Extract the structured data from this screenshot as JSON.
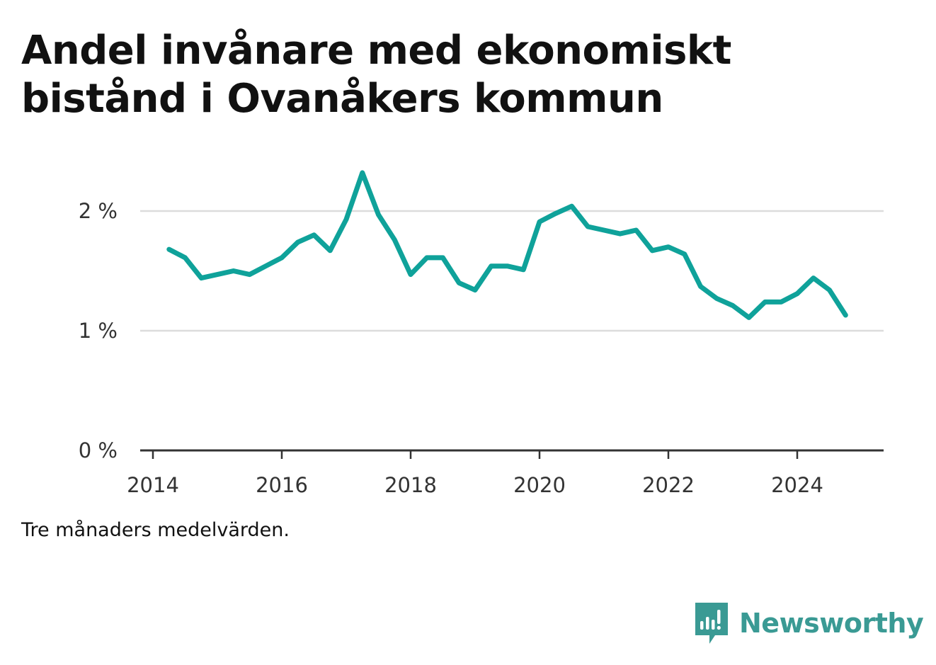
{
  "title": "Andel invånare med ekonomiskt bistånd i Ovanåkers kommun",
  "note": "Tre månaders medelvärden.",
  "brand": {
    "name": "Newsworthy",
    "icon": "newsworthy-logo-icon",
    "color": "#3a9a94"
  },
  "chart_data": {
    "type": "line",
    "title": "Andel invånare med ekonomiskt bistånd i Ovanåkers kommun",
    "xlabel": "",
    "ylabel": "",
    "x_ticks": [
      "2014",
      "2016",
      "2018",
      "2020",
      "2022",
      "2024"
    ],
    "y_ticks": [
      "0 %",
      "1 %",
      "2 %"
    ],
    "ylim": [
      0,
      2.4
    ],
    "grid": true,
    "line_color": "#0fa29a",
    "series": [
      {
        "x": [
          "2014-04",
          "2014-07",
          "2014-10",
          "2015-01",
          "2015-04",
          "2015-07",
          "2015-10",
          "2016-01",
          "2016-04",
          "2016-07",
          "2016-10",
          "2017-01",
          "2017-04",
          "2017-07",
          "2017-10",
          "2018-01",
          "2018-04",
          "2018-07",
          "2018-10",
          "2019-01",
          "2019-04",
          "2019-07",
          "2019-10",
          "2020-01",
          "2020-04",
          "2020-07",
          "2020-10",
          "2021-01",
          "2021-04",
          "2021-07",
          "2021-10",
          "2022-01",
          "2022-04",
          "2022-07",
          "2022-10",
          "2023-01",
          "2023-04",
          "2023-07",
          "2023-10",
          "2024-01",
          "2024-04",
          "2024-07",
          "2024-10"
        ],
        "values": [
          1.68,
          1.61,
          1.44,
          1.47,
          1.5,
          1.47,
          1.54,
          1.61,
          1.74,
          1.8,
          1.67,
          1.93,
          2.32,
          1.97,
          1.76,
          1.47,
          1.61,
          1.61,
          1.4,
          1.34,
          1.54,
          1.54,
          1.51,
          1.91,
          1.98,
          2.04,
          1.87,
          1.84,
          1.81,
          1.84,
          1.67,
          1.7,
          1.64,
          1.37,
          1.27,
          1.21,
          1.11,
          1.24,
          1.24,
          1.31,
          1.44,
          1.34,
          1.13
        ]
      }
    ]
  }
}
